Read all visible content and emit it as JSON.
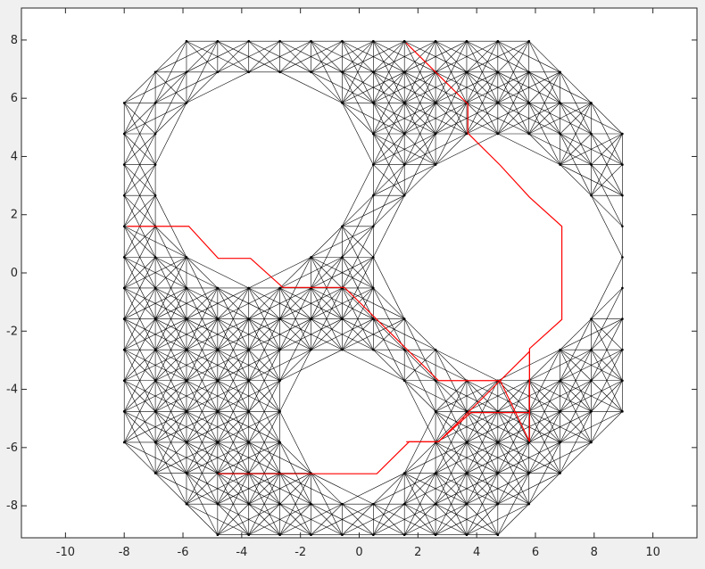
{
  "chart_data": {
    "type": "line",
    "title": "",
    "xlabel": "",
    "ylabel": "",
    "xlim": [
      -11.5,
      11.5
    ],
    "ylim": [
      -9.1,
      9.1
    ],
    "grid": false,
    "xticks": [
      -10,
      -8,
      -6,
      -4,
      -2,
      0,
      2,
      4,
      6,
      8,
      10
    ],
    "yticks": [
      -8,
      -6,
      -4,
      -2,
      0,
      2,
      4,
      6,
      8
    ],
    "xtick_labels": [
      "-10",
      "-8",
      "-6",
      "-4",
      "-2",
      "0",
      "2",
      "4",
      "6",
      "8",
      "10"
    ],
    "ytick_labels": [
      "-8",
      "-6",
      "-4",
      "-2",
      "0",
      "2",
      "4",
      "6",
      "8"
    ],
    "series": [
      {
        "kind": "graph-edges",
        "color": "#000000",
        "lattice": {
          "x0": -8.0,
          "y0": -9.0,
          "step": 1.06,
          "nx": 17,
          "ny": 18
        },
        "boundary_octagon": {
          "center": [
            0,
            0
          ],
          "half_width": 9.0,
          "corner_cut": 3.8
        },
        "obstacles": [
          {
            "shape": "octagon",
            "center": [
              -3.5,
              3.5
            ],
            "radius": 3.2
          },
          {
            "shape": "octagon",
            "center": [
              4.6,
              0.5
            ],
            "radius": 3.6
          },
          {
            "shape": "octagon",
            "center": [
              -0.3,
              -5.0
            ],
            "radius": 2.1
          }
        ]
      },
      {
        "kind": "path",
        "color": "#ff0000",
        "x": [
          -7.9,
          -5.8,
          -4.8,
          -3.7,
          -2.6,
          -0.5,
          0.6,
          1.7,
          2.7,
          3.8,
          4.8,
          5.8,
          5.8,
          4.8,
          3.8,
          2.7,
          1.7,
          0.6,
          -2.6,
          -4.8
        ],
        "y": [
          1.6,
          1.6,
          0.5,
          0.5,
          -0.5,
          -0.5,
          -1.6,
          -2.7,
          -3.7,
          -3.7,
          -3.7,
          -2.7,
          -4.8,
          -4.8,
          -4.8,
          -5.8,
          -5.8,
          -6.9,
          -6.9,
          -6.9
        ]
      },
      {
        "kind": "path",
        "color": "#ff0000",
        "x": [
          1.6,
          2.6,
          3.7,
          3.7,
          4.8,
          5.8,
          6.9,
          6.9,
          5.8,
          5.8,
          4.8,
          3.7,
          2.7,
          1.6
        ],
        "y": [
          7.9,
          6.9,
          5.8,
          4.8,
          3.7,
          2.6,
          1.6,
          -1.6,
          -2.6,
          -5.8,
          -3.7,
          -4.8,
          -5.8,
          -5.8
        ]
      }
    ]
  }
}
